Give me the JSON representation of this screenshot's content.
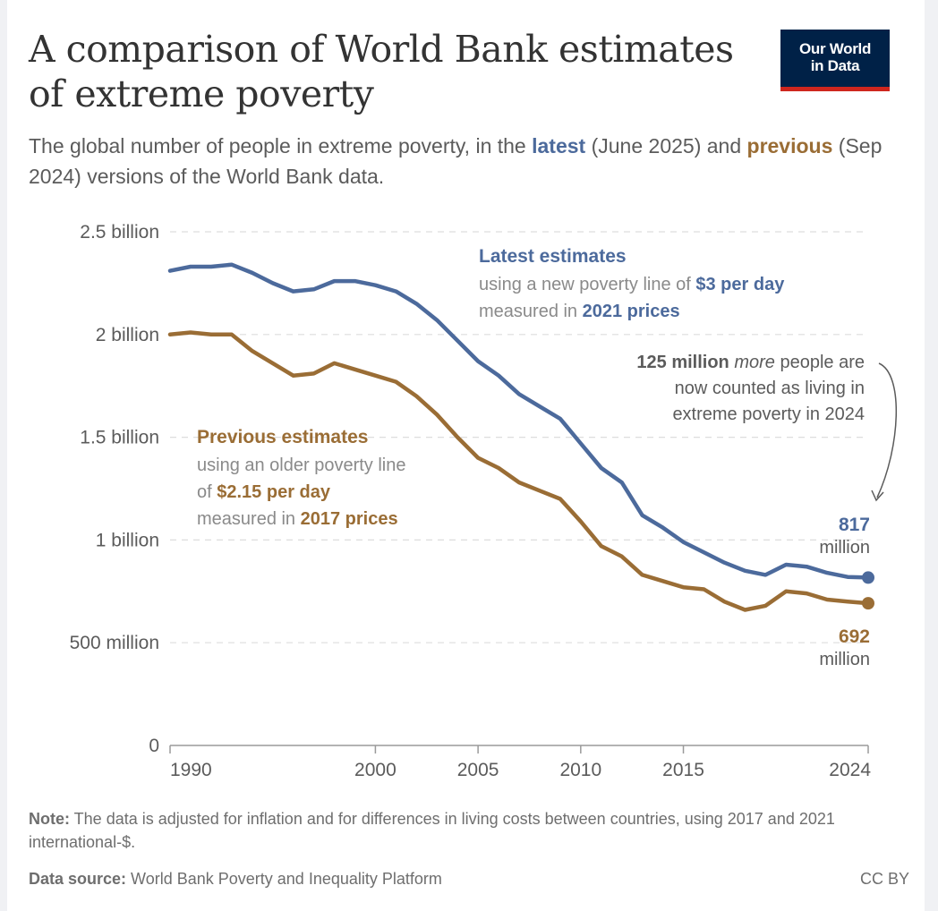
{
  "header": {
    "title": "A comparison of World Bank estimates of extreme poverty",
    "subtitle_parts": {
      "p1": "The global number of people in extreme poverty, in the ",
      "latest": "latest",
      "p2": " (June 2025) and ",
      "previous": "previous",
      "p3": " (Sep 2024) versions of the World Bank data."
    },
    "logo_line1": "Our World",
    "logo_line2": "in Data"
  },
  "colors": {
    "latest": "#4c6a9c",
    "previous": "#9a6d35",
    "logo_bg": "#002147",
    "logo_accent": "#ce261e",
    "grid": "#dddddd",
    "text": "#5b5b5b"
  },
  "annotations": {
    "latest_title": "Latest estimates",
    "latest_line2_a": "using a new poverty line of ",
    "latest_line2_b": "$3 per day",
    "latest_line3_a": "measured in ",
    "latest_line3_b": "2021 prices",
    "previous_title": "Previous estimates",
    "previous_line2": "using an older poverty line",
    "previous_line3_a": "of ",
    "previous_line3_b": "$2.15 per day",
    "previous_line4_a": "measured in ",
    "previous_line4_b": "2017 prices",
    "diff_bold": "125 million",
    "diff_italic": "more",
    "diff_rest1": " people are",
    "diff_line2": "now counted as living in",
    "diff_line3": "extreme poverty in 2024",
    "end_latest_value": "817",
    "end_latest_unit": "million",
    "end_previous_value": "692",
    "end_previous_unit": "million"
  },
  "footer": {
    "note_label": "Note:",
    "note_text": " The data is adjusted for inflation and for differences in living costs between countries, using 2017 and 2021 international-$.",
    "source_label": "Data source:",
    "source_text": " World Bank Poverty and Inequality Platform",
    "license": "CC BY"
  },
  "chart_data": {
    "type": "line",
    "title": "A comparison of World Bank estimates of extreme poverty",
    "xlabel": "",
    "ylabel": "",
    "xlim": [
      1990,
      2024
    ],
    "ylim": [
      0,
      2500000000
    ],
    "grid": true,
    "x_ticks": [
      1990,
      2000,
      2005,
      2010,
      2015,
      2024
    ],
    "y_ticks": [
      {
        "value": 0,
        "label": "0"
      },
      {
        "value": 500000000,
        "label": "500 million"
      },
      {
        "value": 1000000000,
        "label": "1 billion"
      },
      {
        "value": 1500000000,
        "label": "1.5 billion"
      },
      {
        "value": 2000000000,
        "label": "2 billion"
      },
      {
        "value": 2500000000,
        "label": "2.5 billion"
      }
    ],
    "x": [
      1990,
      1991,
      1992,
      1993,
      1994,
      1995,
      1996,
      1997,
      1998,
      1999,
      2000,
      2001,
      2002,
      2003,
      2004,
      2005,
      2006,
      2007,
      2008,
      2009,
      2010,
      2011,
      2012,
      2013,
      2014,
      2015,
      2016,
      2017,
      2018,
      2019,
      2020,
      2021,
      2022,
      2023,
      2024
    ],
    "series": [
      {
        "name": "Latest estimates ($3/day, 2021 prices)",
        "key": "latest",
        "values": [
          2.31,
          2.33,
          2.33,
          2.34,
          2.3,
          2.25,
          2.21,
          2.22,
          2.26,
          2.26,
          2.24,
          2.21,
          2.15,
          2.07,
          1.97,
          1.87,
          1.8,
          1.71,
          1.65,
          1.59,
          1.47,
          1.35,
          1.28,
          1.12,
          1.06,
          0.99,
          0.94,
          0.89,
          0.85,
          0.83,
          0.88,
          0.87,
          0.84,
          0.82,
          0.817
        ],
        "unit": "billion"
      },
      {
        "name": "Previous estimates ($2.15/day, 2017 prices)",
        "key": "previous",
        "values": [
          2.0,
          2.01,
          2.0,
          2.0,
          1.92,
          1.86,
          1.8,
          1.81,
          1.86,
          1.83,
          1.8,
          1.77,
          1.7,
          1.61,
          1.5,
          1.4,
          1.35,
          1.28,
          1.24,
          1.2,
          1.09,
          0.97,
          0.92,
          0.83,
          0.8,
          0.77,
          0.76,
          0.7,
          0.66,
          0.68,
          0.75,
          0.74,
          0.71,
          0.7,
          0.692
        ],
        "unit": "billion"
      }
    ],
    "legend": "inline-labels"
  }
}
